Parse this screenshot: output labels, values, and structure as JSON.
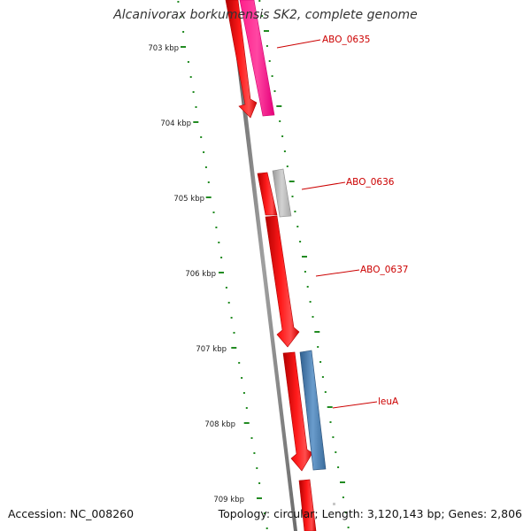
{
  "title": "Alcanivorax borkumensis SK2, complete genome",
  "footer": {
    "accession": "Accession: NC_008260",
    "topology": "Topology: circular; Length: 3,120,143 bp; Genes: 2,806"
  },
  "colors": {
    "forward_cds": "#ff0000",
    "pink_cds": "#ff3399",
    "gray_cds": "#bbbbbb",
    "blue_cds": "#4a7fb5",
    "backbone": "#808080",
    "tick": "#228b22",
    "gene_label": "#cc0000",
    "kbp_label": "#222222"
  },
  "chart_data": {
    "type": "linear-genome-map",
    "kbp_labels": [
      "703 kbp",
      "704 kbp",
      "705 kbp",
      "706 kbp",
      "707 kbp",
      "708 kbp",
      "709 kbp"
    ],
    "gene_labels": [
      "ABO_0635",
      "ABO_0636",
      "ABO_0637",
      "leuA"
    ]
  }
}
